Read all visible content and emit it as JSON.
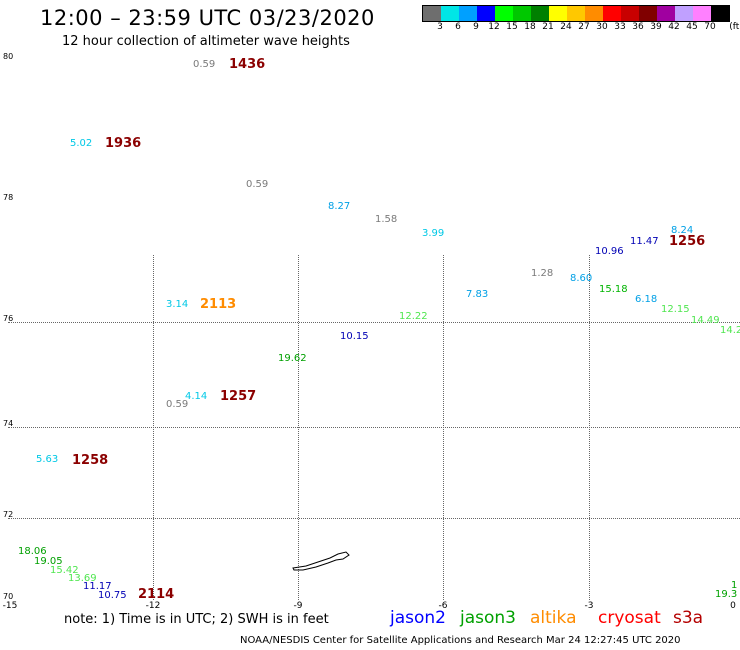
{
  "title": "12:00 – 23:59 UTC 03/23/2020",
  "subtitle": "12 hour collection of altimeter wave heights",
  "legend": {
    "colors": [
      "#6e6e6e",
      "#00e6e6",
      "#00a0ff",
      "#0000ff",
      "#00ff00",
      "#00c800",
      "#008000",
      "#ffff00",
      "#ffc800",
      "#ff8c00",
      "#ff0000",
      "#c80000",
      "#800000",
      "#a000a0",
      "#c0a0ff",
      "#ff80ff",
      "#000000"
    ],
    "ticks": [
      "3",
      "6",
      "9",
      "12",
      "15",
      "18",
      "21",
      "24",
      "27",
      "30",
      "33",
      "36",
      "39",
      "42",
      "45",
      "70",
      "(ft)"
    ]
  },
  "lat_labels": [
    "80",
    "78",
    "76",
    "74",
    "72",
    "70"
  ],
  "lon_labels": [
    "-15",
    "-12",
    "-9",
    "-6",
    "-3",
    "0"
  ],
  "swh_values": [
    {
      "text": "0.59",
      "color": "#7a7a7a"
    },
    {
      "text": "5.02",
      "color": "#00c8e6"
    },
    {
      "text": "0.59",
      "color": "#7a7a7a"
    },
    {
      "text": "8.27",
      "color": "#00a0e6"
    },
    {
      "text": "1.58",
      "color": "#7a7a7a"
    },
    {
      "text": "3.99",
      "color": "#00c8e6"
    },
    {
      "text": "8.24",
      "color": "#00a0e6"
    },
    {
      "text": "11.47",
      "color": "#0000b4"
    },
    {
      "text": "10.96",
      "color": "#0000b4"
    },
    {
      "text": "1.28",
      "color": "#7a7a7a"
    },
    {
      "text": "8.60",
      "color": "#00a0e6"
    },
    {
      "text": "15.18",
      "color": "#00b400"
    },
    {
      "text": "7.83",
      "color": "#00a0e6"
    },
    {
      "text": "6.18",
      "color": "#00a0e6"
    },
    {
      "text": "12.15",
      "color": "#50e650"
    },
    {
      "text": "14.49",
      "color": "#50e650"
    },
    {
      "text": "14.2",
      "color": "#50e650"
    },
    {
      "text": "12.22",
      "color": "#50e650"
    },
    {
      "text": "3.14",
      "color": "#00c8e6"
    },
    {
      "text": "10.15",
      "color": "#0000b4"
    },
    {
      "text": "19.62",
      "color": "#00a000"
    },
    {
      "text": "4.14",
      "color": "#00c8e6"
    },
    {
      "text": "0.59",
      "color": "#7a7a7a"
    },
    {
      "text": "5.63",
      "color": "#00c8e6"
    },
    {
      "text": "18.06",
      "color": "#00a000"
    },
    {
      "text": "19.05",
      "color": "#00a000"
    },
    {
      "text": "15.42",
      "color": "#50e650"
    },
    {
      "text": "13.69",
      "color": "#50e650"
    },
    {
      "text": "11.17",
      "color": "#0000b4"
    },
    {
      "text": "10.75",
      "color": "#0000b4"
    },
    {
      "text": "19.3",
      "color": "#00a000"
    },
    {
      "text": "1",
      "color": "#00a000"
    }
  ],
  "pass_times": [
    {
      "text": "1436",
      "color": "#8b0000"
    },
    {
      "text": "1936",
      "color": "#8b0000"
    },
    {
      "text": "1256",
      "color": "#8b0000"
    },
    {
      "text": "2113",
      "color": "#ff8c00"
    },
    {
      "text": "1257",
      "color": "#8b0000"
    },
    {
      "text": "1258",
      "color": "#8b0000"
    },
    {
      "text": "2114",
      "color": "#8b0000"
    }
  ],
  "note": "note: 1) Time is in UTC; 2) SWH is in feet",
  "satellites": [
    {
      "name": "jason2",
      "color": "#0000ff"
    },
    {
      "name": "jason3",
      "color": "#00a000"
    },
    {
      "name": "altika",
      "color": "#ff8c00"
    },
    {
      "name": "cryosat",
      "color": "#ff0000"
    },
    {
      "name": "s3a",
      "color": "#b40000"
    }
  ],
  "footer": "NOAA/NESDIS Center for Satellite Applications and Research    Mar 24 12:27:45 UTC 2020"
}
